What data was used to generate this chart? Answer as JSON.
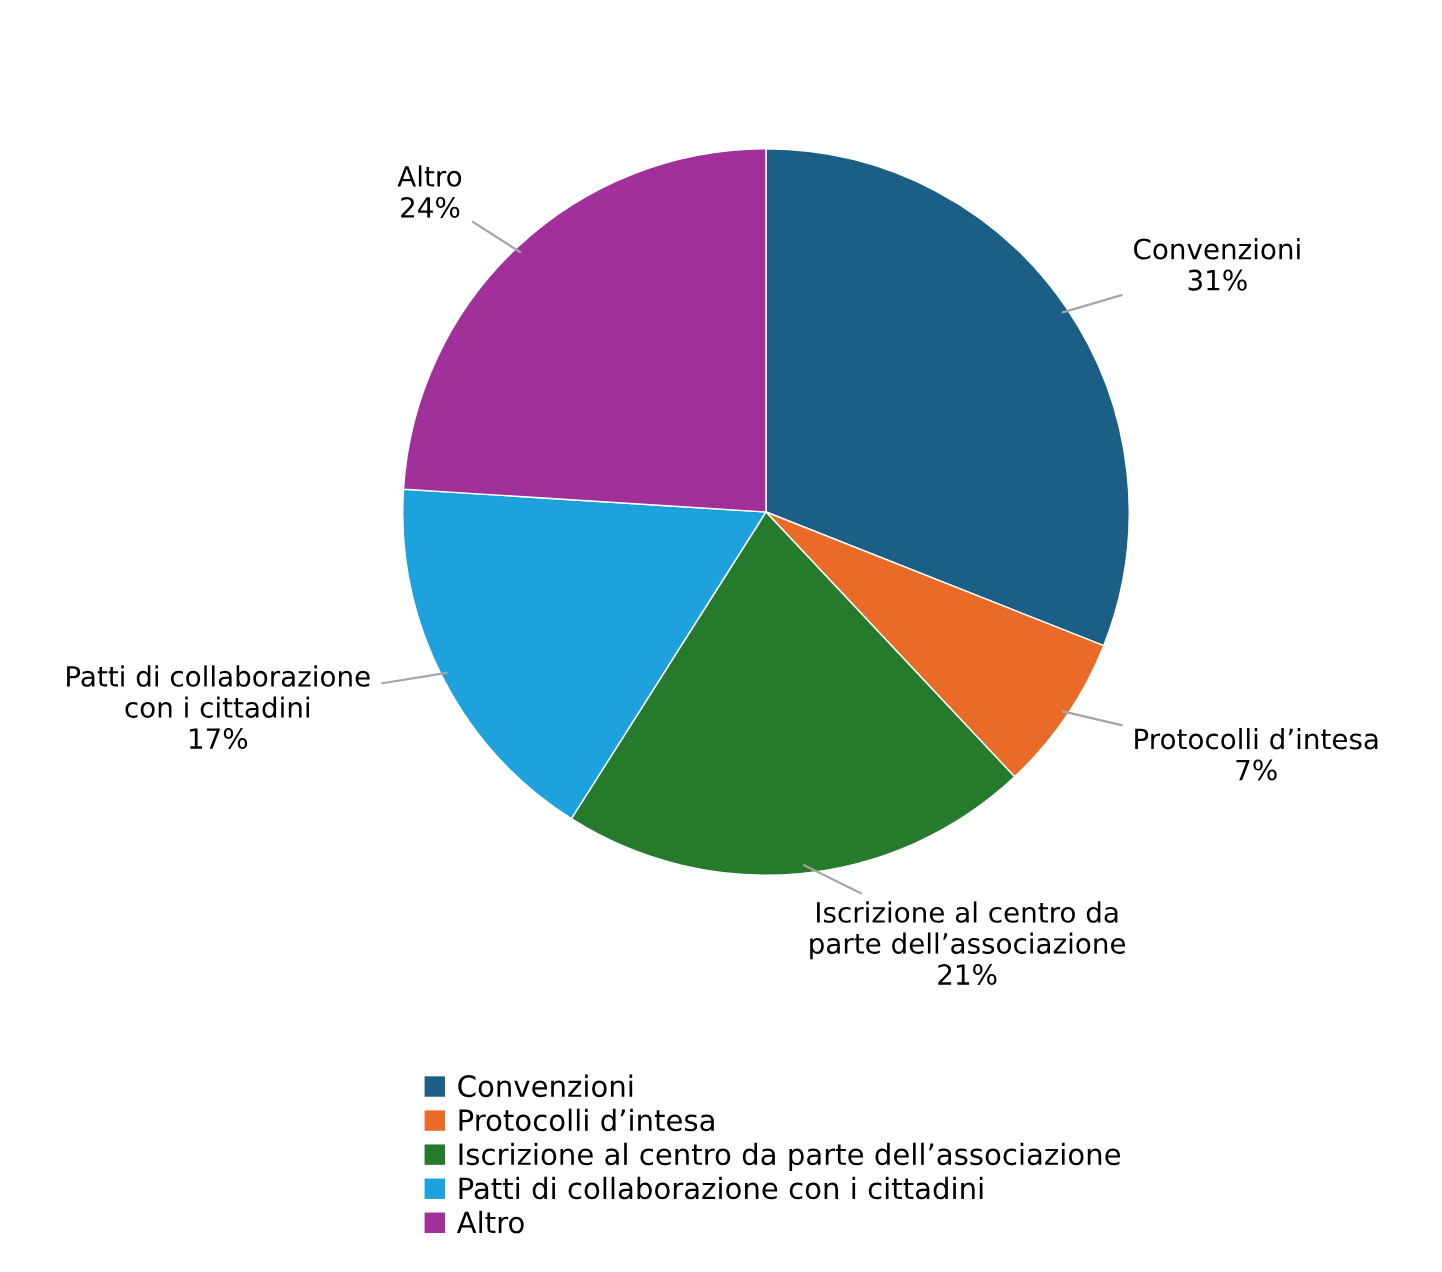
{
  "chart_data": {
    "type": "pie",
    "categories": [
      "Convenzioni",
      "Protocolli d’intesa",
      "Iscrizione al centro da parte dell’associazione",
      "Patti di collaborazione con i cittadini",
      "Altro"
    ],
    "values": [
      31,
      7,
      21,
      17,
      24
    ],
    "colors": [
      "#1c5f86",
      "#ea6a28",
      "#267a2c",
      "#1ea2dd",
      "#a1309b"
    ],
    "value_labels": [
      "31%",
      "7%",
      "21%",
      "17%",
      "24%"
    ],
    "legend": "bottom"
  }
}
